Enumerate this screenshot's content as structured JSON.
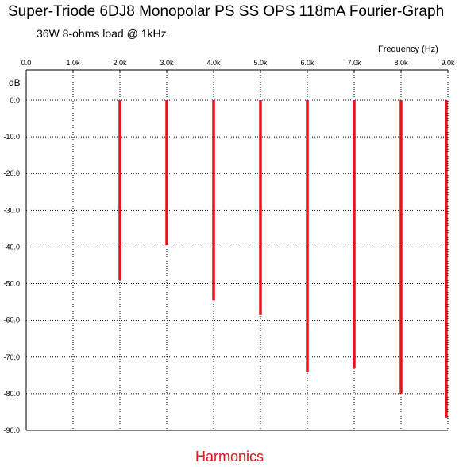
{
  "chart_data": {
    "type": "bar",
    "title": "Super-Triode 6DJ8 Monopolar PS SS OPS 118mA Fourier-Graph",
    "subtitle": "36W 8-ohms load @ 1kHz",
    "xlabel": "Frequency  (Hz)",
    "ylabel": "dB",
    "footer": "Harmonics",
    "x_ticks": [
      "0.0",
      "1.0k",
      "2.0k",
      "3.0k",
      "4.0k",
      "5.0k",
      "6.0k",
      "7.0k",
      "8.0k",
      "9.0k"
    ],
    "y_ticks": [
      "0.0",
      "-10.0",
      "-20.0",
      "-30.0",
      "-40.0",
      "-50.0",
      "-60.0",
      "-70.0",
      "-80.0",
      "-90.0"
    ],
    "xlim": [
      0,
      9000
    ],
    "ylim": [
      -90,
      0
    ],
    "grid": true,
    "series": [
      {
        "x": [
          2000,
          3000,
          4000,
          5000,
          6000,
          7000,
          8000,
          9000
        ],
        "values": [
          -49,
          -39.5,
          -54.5,
          -58.5,
          -74,
          -73,
          -80,
          -86.5
        ]
      }
    ],
    "colors": {
      "bars": "#e8121a",
      "grid": "#000000",
      "footer": "#e8121a"
    }
  }
}
